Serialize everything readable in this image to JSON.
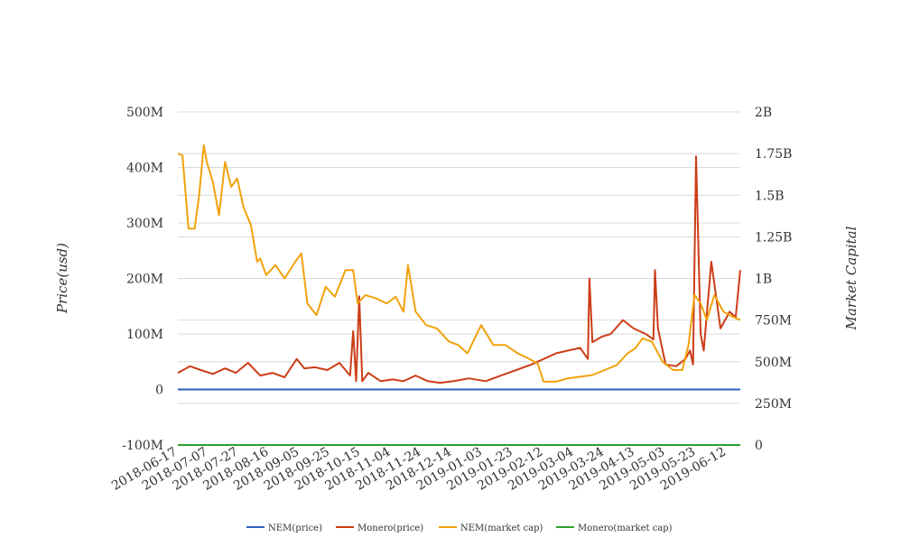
{
  "chart_data": {
    "type": "line",
    "title": "",
    "ylabel": "Price(usd)",
    "y2label": "Market Capital",
    "ylim": [
      -100000000,
      500000000
    ],
    "y2lim": [
      0,
      2000000000
    ],
    "yticks": [
      "-100M",
      "0",
      "100M",
      "200M",
      "300M",
      "400M",
      "500M"
    ],
    "y2ticks": [
      "0",
      "250M",
      "500M",
      "750M",
      "1B",
      "1.25B",
      "1.5B",
      "1.75B",
      "2B"
    ],
    "xticks": [
      "2018-06-17",
      "2018-07-07",
      "2018-07-27",
      "2018-08-16",
      "2018-09-05",
      "2018-09-25",
      "2018-10-15",
      "2018-11-04",
      "2018-11-24",
      "2018-12-14",
      "2019-01-03",
      "2019-01-23",
      "2019-02-12",
      "2019-03-04",
      "2019-03-24",
      "2019-04-13",
      "2019-05-03",
      "2019-05-23",
      "2019-06-12"
    ],
    "x_start": "2018-06-17",
    "x_end": "2019-06-21",
    "legend_position": "bottom",
    "grid": true,
    "series": [
      {
        "name": "NEM(price)",
        "axis": "left",
        "color": "#2e5fb8",
        "dates": [
          "2018-06-17",
          "2019-06-21"
        ],
        "values": [
          0,
          0
        ]
      },
      {
        "name": "Monero(price)",
        "axis": "left",
        "color": "#cc3d17",
        "dates": [
          "2018-06-17",
          "2018-06-25",
          "2018-07-02",
          "2018-07-10",
          "2018-07-18",
          "2018-07-25",
          "2018-08-02",
          "2018-08-10",
          "2018-08-18",
          "2018-08-26",
          "2018-09-03",
          "2018-09-08",
          "2018-09-15",
          "2018-09-23",
          "2018-10-01",
          "2018-10-08",
          "2018-10-10",
          "2018-10-12",
          "2018-10-14",
          "2018-10-16",
          "2018-10-20",
          "2018-10-28",
          "2018-11-05",
          "2018-11-12",
          "2018-11-20",
          "2018-11-28",
          "2018-12-06",
          "2018-12-15",
          "2018-12-25",
          "2019-01-05",
          "2019-01-15",
          "2019-01-25",
          "2019-02-04",
          "2019-02-12",
          "2019-02-20",
          "2019-02-28",
          "2019-03-08",
          "2019-03-13",
          "2019-03-14",
          "2019-03-16",
          "2019-03-22",
          "2019-03-28",
          "2019-04-05",
          "2019-04-12",
          "2019-04-20",
          "2019-04-25",
          "2019-04-26",
          "2019-04-28",
          "2019-05-03",
          "2019-05-10",
          "2019-05-16",
          "2019-05-19",
          "2019-05-21",
          "2019-05-23",
          "2019-05-26",
          "2019-05-28",
          "2019-06-02",
          "2019-06-08",
          "2019-06-14",
          "2019-06-18",
          "2019-06-21"
        ],
        "values": [
          30,
          42,
          35,
          28,
          38,
          30,
          48,
          25,
          30,
          22,
          55,
          38,
          40,
          35,
          48,
          25,
          105,
          15,
          168,
          15,
          30,
          15,
          18,
          15,
          25,
          15,
          12,
          15,
          20,
          15,
          25,
          35,
          45,
          55,
          65,
          70,
          75,
          55,
          200,
          85,
          95,
          100,
          125,
          110,
          100,
          90,
          215,
          110,
          45,
          42,
          55,
          70,
          45,
          420,
          100,
          70,
          230,
          110,
          140,
          130,
          215
        ]
      },
      {
        "name": "NEM(market cap)",
        "axis": "right",
        "color": "#f0a20c",
        "dates": [
          "2018-06-17",
          "2018-06-20",
          "2018-06-24",
          "2018-06-28",
          "2018-07-01",
          "2018-07-04",
          "2018-07-06",
          "2018-07-10",
          "2018-07-14",
          "2018-07-18",
          "2018-07-22",
          "2018-07-26",
          "2018-07-30",
          "2018-08-04",
          "2018-08-08",
          "2018-08-10",
          "2018-08-14",
          "2018-08-20",
          "2018-08-26",
          "2018-09-02",
          "2018-09-06",
          "2018-09-10",
          "2018-09-16",
          "2018-09-22",
          "2018-09-28",
          "2018-10-05",
          "2018-10-10",
          "2018-10-13",
          "2018-10-18",
          "2018-10-25",
          "2018-11-01",
          "2018-11-07",
          "2018-11-12",
          "2018-11-15",
          "2018-11-20",
          "2018-11-27",
          "2018-12-04",
          "2018-12-12",
          "2018-12-18",
          "2018-12-24",
          "2019-01-02",
          "2019-01-10",
          "2019-01-18",
          "2019-01-26",
          "2019-02-02",
          "2019-02-08",
          "2019-02-12",
          "2019-02-20",
          "2019-02-28",
          "2019-03-08",
          "2019-03-16",
          "2019-03-24",
          "2019-04-01",
          "2019-04-08",
          "2019-04-13",
          "2019-04-18",
          "2019-04-24",
          "2019-05-01",
          "2019-05-08",
          "2019-05-14",
          "2019-05-18",
          "2019-05-22",
          "2019-05-26",
          "2019-05-30",
          "2019-06-04",
          "2019-06-10",
          "2019-06-16",
          "2019-06-21"
        ],
        "values": [
          1.75,
          1.74,
          1.3,
          1.3,
          1.5,
          1.8,
          1.7,
          1.58,
          1.38,
          1.7,
          1.55,
          1.6,
          1.43,
          1.32,
          1.1,
          1.12,
          1.02,
          1.08,
          1.0,
          1.1,
          1.15,
          0.85,
          0.78,
          0.95,
          0.89,
          1.05,
          1.05,
          0.85,
          0.9,
          0.88,
          0.85,
          0.89,
          0.8,
          1.08,
          0.8,
          0.72,
          0.7,
          0.62,
          0.6,
          0.55,
          0.72,
          0.6,
          0.6,
          0.55,
          0.52,
          0.49,
          0.38,
          0.38,
          0.4,
          0.41,
          0.42,
          0.45,
          0.48,
          0.55,
          0.58,
          0.64,
          0.62,
          0.5,
          0.45,
          0.45,
          0.6,
          0.9,
          0.85,
          0.75,
          0.9,
          0.8,
          0.77,
          0.75
        ]
      },
      {
        "name": "Monero(market cap)",
        "axis": "right",
        "color": "#2ca02c",
        "dates": [
          "2018-06-17",
          "2019-06-21"
        ],
        "values": [
          0,
          0
        ]
      }
    ]
  },
  "legend": [
    {
      "label": "NEM(price)",
      "color": "#2e5fb8"
    },
    {
      "label": "Monero(price)",
      "color": "#cc3d17"
    },
    {
      "label": "NEM(market cap)",
      "color": "#f0a20c"
    },
    {
      "label": "Monero(market cap)",
      "color": "#2ca02c"
    }
  ],
  "grid_color": "#d9d9d9"
}
